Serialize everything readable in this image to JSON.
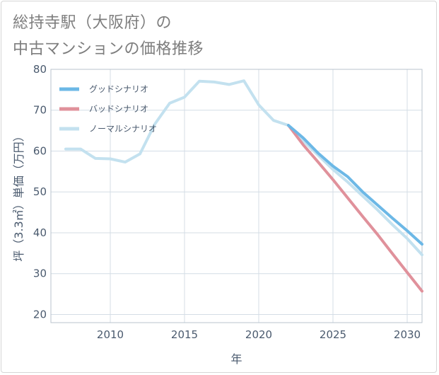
{
  "title_line1": "総持寺駅（大阪府）の",
  "title_line2": "中古マンションの価格推移",
  "chart_data": {
    "type": "line",
    "xlabel": "年",
    "ylabel": "坪（3.3㎡）単価（万円）",
    "xlim": [
      2006,
      2031
    ],
    "ylim": [
      18,
      80
    ],
    "xticks": [
      2010,
      2015,
      2020,
      2025,
      2030
    ],
    "yticks": [
      20,
      30,
      40,
      50,
      60,
      70,
      80
    ],
    "grid": true,
    "legend_position": "top-left",
    "series": [
      {
        "name": "グッドシナリオ",
        "color": "#6cb8e6",
        "x": [
          2022,
          2023,
          2024,
          2025,
          2026,
          2027,
          2028,
          2029,
          2030,
          2031
        ],
        "y": [
          66.3,
          63.2,
          59.5,
          56.3,
          53.7,
          50.0,
          46.8,
          43.6,
          40.5,
          37.2
        ]
      },
      {
        "name": "バッドシナリオ",
        "color": "#e0919b",
        "x": [
          2022,
          2023,
          2024,
          2025,
          2026,
          2027,
          2028,
          2029,
          2030,
          2031
        ],
        "y": [
          66.3,
          61.5,
          57.3,
          53.0,
          48.5,
          44.0,
          39.6,
          34.9,
          30.3,
          25.7
        ]
      },
      {
        "name": "ノーマルシナリオ",
        "color": "#c3e1ef",
        "x": [
          2007,
          2008,
          2009,
          2010,
          2011,
          2012,
          2013,
          2014,
          2015,
          2016,
          2017,
          2018,
          2019,
          2020,
          2021,
          2022,
          2023,
          2024,
          2025,
          2026,
          2027,
          2028,
          2029,
          2030,
          2031
        ],
        "y": [
          60.5,
          60.5,
          58.2,
          58.1,
          57.3,
          59.3,
          66.6,
          71.7,
          73.2,
          77.1,
          76.9,
          76.3,
          77.2,
          71.3,
          67.5,
          66.3,
          62.5,
          59.0,
          55.5,
          52.4,
          49.0,
          45.6,
          42.0,
          38.6,
          34.6
        ]
      }
    ]
  }
}
